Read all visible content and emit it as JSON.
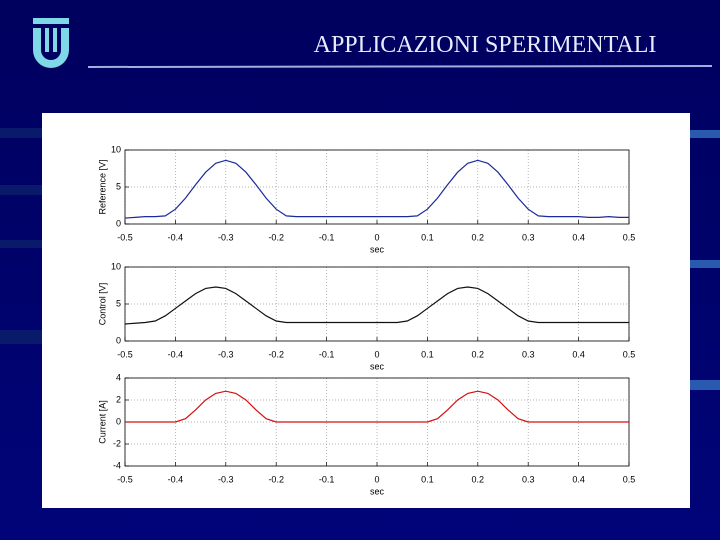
{
  "title": "APPLICAZIONI  SPERIMENTALI",
  "chart_data": [
    {
      "type": "line",
      "y_label": "Reference [V]",
      "x_label": "sec",
      "color": "#1c2a9c",
      "grid": true,
      "xlim": [
        -0.5,
        0.5
      ],
      "xticks": [
        -0.5,
        -0.4,
        -0.3,
        -0.2,
        -0.1,
        0,
        0.1,
        0.2,
        0.3,
        0.4,
        0.5
      ],
      "ylim": [
        0,
        10
      ],
      "yticks": [
        0,
        5,
        10
      ],
      "x": [
        -0.5,
        -0.48,
        -0.46,
        -0.44,
        -0.42,
        -0.4,
        -0.38,
        -0.36,
        -0.34,
        -0.32,
        -0.3,
        -0.28,
        -0.26,
        -0.24,
        -0.22,
        -0.2,
        -0.18,
        -0.16,
        -0.14,
        -0.12,
        -0.1,
        -0.08,
        -0.06,
        -0.04,
        -0.02,
        0,
        0.02,
        0.04,
        0.06,
        0.08,
        0.1,
        0.12,
        0.14,
        0.16,
        0.18,
        0.2,
        0.22,
        0.24,
        0.26,
        0.28,
        0.3,
        0.32,
        0.34,
        0.36,
        0.38,
        0.4,
        0.42,
        0.44,
        0.46,
        0.48,
        0.5
      ],
      "values": [
        0.8,
        0.9,
        1.0,
        1.0,
        1.1,
        2.0,
        3.5,
        5.3,
        7.0,
        8.2,
        8.6,
        8.2,
        7.0,
        5.3,
        3.5,
        2.0,
        1.1,
        1.0,
        1.0,
        1.0,
        1.0,
        1.0,
        1.0,
        1.0,
        1.0,
        1.0,
        1.0,
        1.0,
        1.0,
        1.1,
        2.0,
        3.5,
        5.3,
        7.0,
        8.2,
        8.6,
        8.2,
        7.0,
        5.3,
        3.5,
        2.0,
        1.1,
        1.0,
        1.0,
        1.0,
        1.0,
        0.9,
        0.9,
        1.0,
        0.9,
        0.9
      ]
    },
    {
      "type": "line",
      "y_label": "Control [V]",
      "x_label": "sec",
      "color": "#111111",
      "grid": true,
      "xlim": [
        -0.5,
        0.5
      ],
      "xticks": [
        -0.5,
        -0.4,
        -0.3,
        -0.2,
        -0.1,
        0,
        0.1,
        0.2,
        0.3,
        0.4,
        0.5
      ],
      "ylim": [
        0,
        10
      ],
      "yticks": [
        0,
        5,
        10
      ],
      "x": [
        -0.5,
        -0.48,
        -0.46,
        -0.44,
        -0.42,
        -0.4,
        -0.38,
        -0.36,
        -0.34,
        -0.32,
        -0.3,
        -0.28,
        -0.26,
        -0.24,
        -0.22,
        -0.2,
        -0.18,
        -0.16,
        -0.14,
        -0.12,
        -0.1,
        -0.08,
        -0.06,
        -0.04,
        -0.02,
        0,
        0.02,
        0.04,
        0.06,
        0.08,
        0.1,
        0.12,
        0.14,
        0.16,
        0.18,
        0.2,
        0.22,
        0.24,
        0.26,
        0.28,
        0.3,
        0.32,
        0.34,
        0.36,
        0.38,
        0.4,
        0.42,
        0.44,
        0.46,
        0.48,
        0.5
      ],
      "values": [
        2.3,
        2.4,
        2.5,
        2.7,
        3.4,
        4.4,
        5.4,
        6.4,
        7.1,
        7.3,
        7.1,
        6.4,
        5.4,
        4.4,
        3.4,
        2.7,
        2.5,
        2.5,
        2.5,
        2.5,
        2.5,
        2.5,
        2.5,
        2.5,
        2.5,
        2.5,
        2.5,
        2.5,
        2.7,
        3.4,
        4.4,
        5.4,
        6.4,
        7.1,
        7.3,
        7.1,
        6.4,
        5.4,
        4.4,
        3.4,
        2.7,
        2.5,
        2.5,
        2.5,
        2.5,
        2.5,
        2.5,
        2.5,
        2.5,
        2.5,
        2.5
      ]
    },
    {
      "type": "line",
      "y_label": "Current [A]",
      "x_label": "sec",
      "color": "#d01010",
      "grid": true,
      "xlim": [
        -0.5,
        0.5
      ],
      "xticks": [
        -0.5,
        -0.4,
        -0.3,
        -0.2,
        -0.1,
        0,
        0.1,
        0.2,
        0.3,
        0.4,
        0.5
      ],
      "ylim": [
        -4,
        4
      ],
      "yticks": [
        -4,
        -2,
        0,
        2,
        4
      ],
      "x": [
        -0.5,
        -0.48,
        -0.46,
        -0.44,
        -0.42,
        -0.4,
        -0.38,
        -0.36,
        -0.34,
        -0.32,
        -0.3,
        -0.28,
        -0.26,
        -0.24,
        -0.22,
        -0.2,
        -0.18,
        -0.16,
        -0.14,
        -0.12,
        -0.1,
        -0.08,
        -0.06,
        -0.04,
        -0.02,
        0,
        0.02,
        0.04,
        0.06,
        0.08,
        0.1,
        0.12,
        0.14,
        0.16,
        0.18,
        0.2,
        0.22,
        0.24,
        0.26,
        0.28,
        0.3,
        0.32,
        0.34,
        0.36,
        0.38,
        0.4,
        0.42,
        0.44,
        0.46,
        0.48,
        0.5
      ],
      "values": [
        0,
        0,
        0,
        0,
        0,
        0,
        0.3,
        1.1,
        2.0,
        2.6,
        2.8,
        2.6,
        2.0,
        1.1,
        0.3,
        0,
        0,
        0,
        0,
        0,
        0,
        0,
        0,
        0,
        0,
        0,
        0,
        0,
        0,
        0,
        0,
        0.3,
        1.1,
        2.0,
        2.6,
        2.8,
        2.6,
        2.0,
        1.1,
        0.3,
        0,
        0,
        0,
        0,
        0,
        0,
        0,
        0,
        0,
        0,
        0
      ]
    }
  ]
}
